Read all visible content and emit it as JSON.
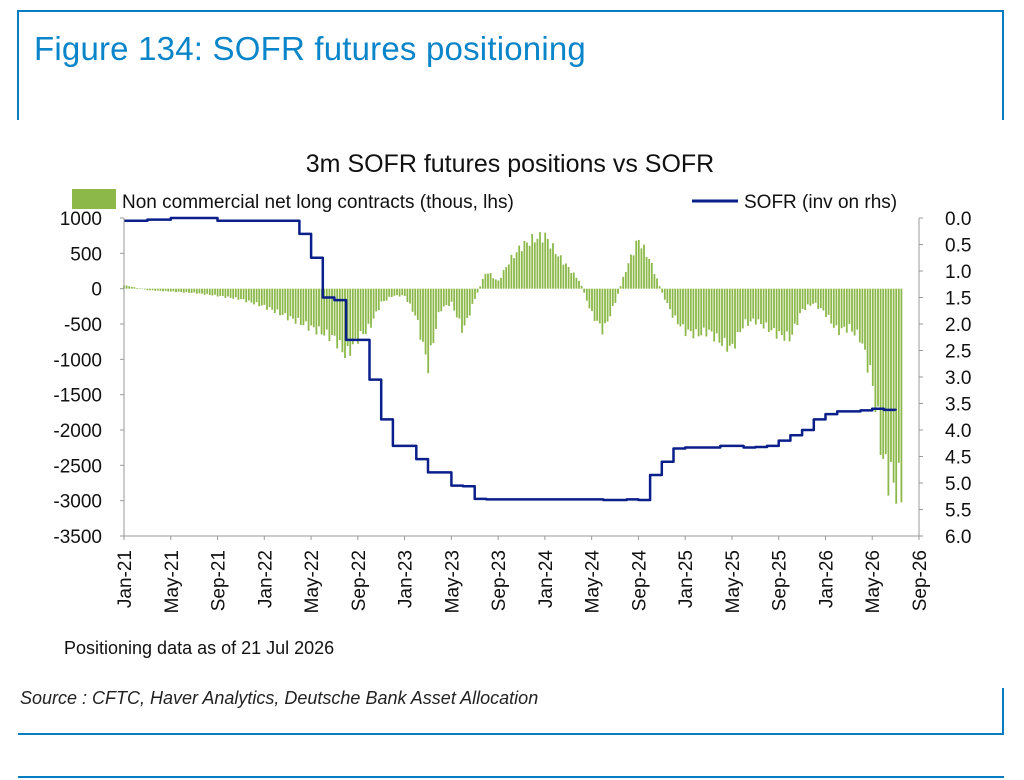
{
  "figure": {
    "title": "Figure 134: SOFR futures positioning",
    "source": "Source : CFTC, Haver Analytics, Deutsche Bank Asset Allocation",
    "note": "Positioning data as of 21 Jul 2026",
    "accent_color": "#0a85c9"
  },
  "chart_data": {
    "type": "bar",
    "title": "3m SOFR futures positions vs SOFR",
    "xlabel": "",
    "ylabel": "",
    "grid": false,
    "legend_position": "top",
    "x_tick_labels": [
      "Jan-21",
      "May-21",
      "Sep-21",
      "Jan-22",
      "May-22",
      "Sep-22",
      "Jan-23",
      "May-23",
      "Sep-23",
      "Jan-24",
      "May-24",
      "Sep-24",
      "Jan-25",
      "May-25",
      "Sep-25",
      "Jan-26",
      "May-26",
      "Sep-26"
    ],
    "xlim": [
      "2021-01",
      "2026-09"
    ],
    "y_left": {
      "ylim": [
        -3500,
        1000
      ],
      "ticks": [
        "1000",
        "500",
        "0",
        "-500",
        "-1000",
        "-1500",
        "-2000",
        "-2500",
        "-3000",
        "-3500"
      ]
    },
    "y_right": {
      "ylim": [
        0.0,
        6.0
      ],
      "inverted": true,
      "ticks": [
        "0.0",
        "0.5",
        "1.0",
        "1.5",
        "2.0",
        "2.5",
        "3.0",
        "3.5",
        "4.0",
        "4.5",
        "5.0",
        "5.5",
        "6.0"
      ]
    },
    "series": [
      {
        "name": "Non commercial net long contracts (thous, lhs)",
        "type": "bar",
        "axis": "left",
        "color": "#8cb84a",
        "x": [
          "2021-01",
          "2021-03",
          "2021-05",
          "2021-07",
          "2021-09",
          "2021-11",
          "2022-01",
          "2022-03",
          "2022-05",
          "2022-07",
          "2022-08",
          "2022-09",
          "2022-10",
          "2022-11",
          "2022-12",
          "2023-01",
          "2023-02",
          "2023-03",
          "2023-04",
          "2023-05",
          "2023-06",
          "2023-07",
          "2023-08",
          "2023-09",
          "2023-10",
          "2023-11",
          "2023-12",
          "2024-01",
          "2024-02",
          "2024-03",
          "2024-04",
          "2024-05",
          "2024-06",
          "2024-07",
          "2024-08",
          "2024-09",
          "2024-10",
          "2024-11",
          "2024-12",
          "2025-01",
          "2025-02",
          "2025-03",
          "2025-04",
          "2025-05",
          "2025-06",
          "2025-07",
          "2025-08",
          "2025-09",
          "2025-10",
          "2025-11",
          "2025-12",
          "2026-01",
          "2026-02",
          "2026-03",
          "2026-04",
          "2026-05",
          "2026-06",
          "2026-07"
        ],
        "values": [
          50,
          -20,
          -40,
          -60,
          -100,
          -150,
          -250,
          -400,
          -550,
          -700,
          -950,
          -700,
          -550,
          -200,
          -100,
          -100,
          -400,
          -1100,
          -300,
          -200,
          -600,
          -150,
          250,
          100,
          400,
          600,
          700,
          750,
          500,
          300,
          100,
          -350,
          -600,
          -200,
          300,
          700,
          400,
          -50,
          -400,
          -600,
          -650,
          -600,
          -750,
          -850,
          -500,
          -450,
          -550,
          -650,
          -700,
          -300,
          -200,
          -350,
          -600,
          -550,
          -700,
          -1300,
          -2500,
          -2800
        ]
      },
      {
        "name": "SOFR (inv on rhs)",
        "type": "line",
        "axis": "right",
        "color": "#0a1f8a",
        "x": [
          "2021-01",
          "2021-03",
          "2021-05",
          "2021-07",
          "2021-09",
          "2021-12",
          "2022-01",
          "2022-03",
          "2022-04",
          "2022-05",
          "2022-06",
          "2022-07",
          "2022-08",
          "2022-09",
          "2022-10",
          "2022-11",
          "2022-12",
          "2023-01",
          "2023-02",
          "2023-03",
          "2023-04",
          "2023-05",
          "2023-06",
          "2023-07",
          "2023-08",
          "2023-09",
          "2023-12",
          "2024-01",
          "2024-03",
          "2024-06",
          "2024-08",
          "2024-09",
          "2024-10",
          "2024-11",
          "2024-12",
          "2025-01",
          "2025-02",
          "2025-03",
          "2025-04",
          "2025-05",
          "2025-06",
          "2025-07",
          "2025-08",
          "2025-09",
          "2025-10",
          "2025-11",
          "2025-12",
          "2026-01",
          "2026-02",
          "2026-03",
          "2026-04",
          "2026-05",
          "2026-06",
          "2026-07"
        ],
        "values": [
          0.05,
          0.03,
          0.0,
          0.0,
          0.05,
          0.05,
          0.05,
          0.05,
          0.3,
          0.75,
          1.5,
          1.55,
          2.3,
          2.3,
          3.05,
          3.8,
          4.3,
          4.3,
          4.55,
          4.8,
          4.8,
          5.05,
          5.06,
          5.3,
          5.31,
          5.31,
          5.31,
          5.31,
          5.31,
          5.32,
          5.31,
          5.32,
          4.85,
          4.6,
          4.35,
          4.33,
          4.33,
          4.33,
          4.3,
          4.3,
          4.33,
          4.32,
          4.3,
          4.2,
          4.1,
          4.0,
          3.8,
          3.7,
          3.65,
          3.65,
          3.63,
          3.6,
          3.62,
          3.63
        ]
      }
    ]
  }
}
